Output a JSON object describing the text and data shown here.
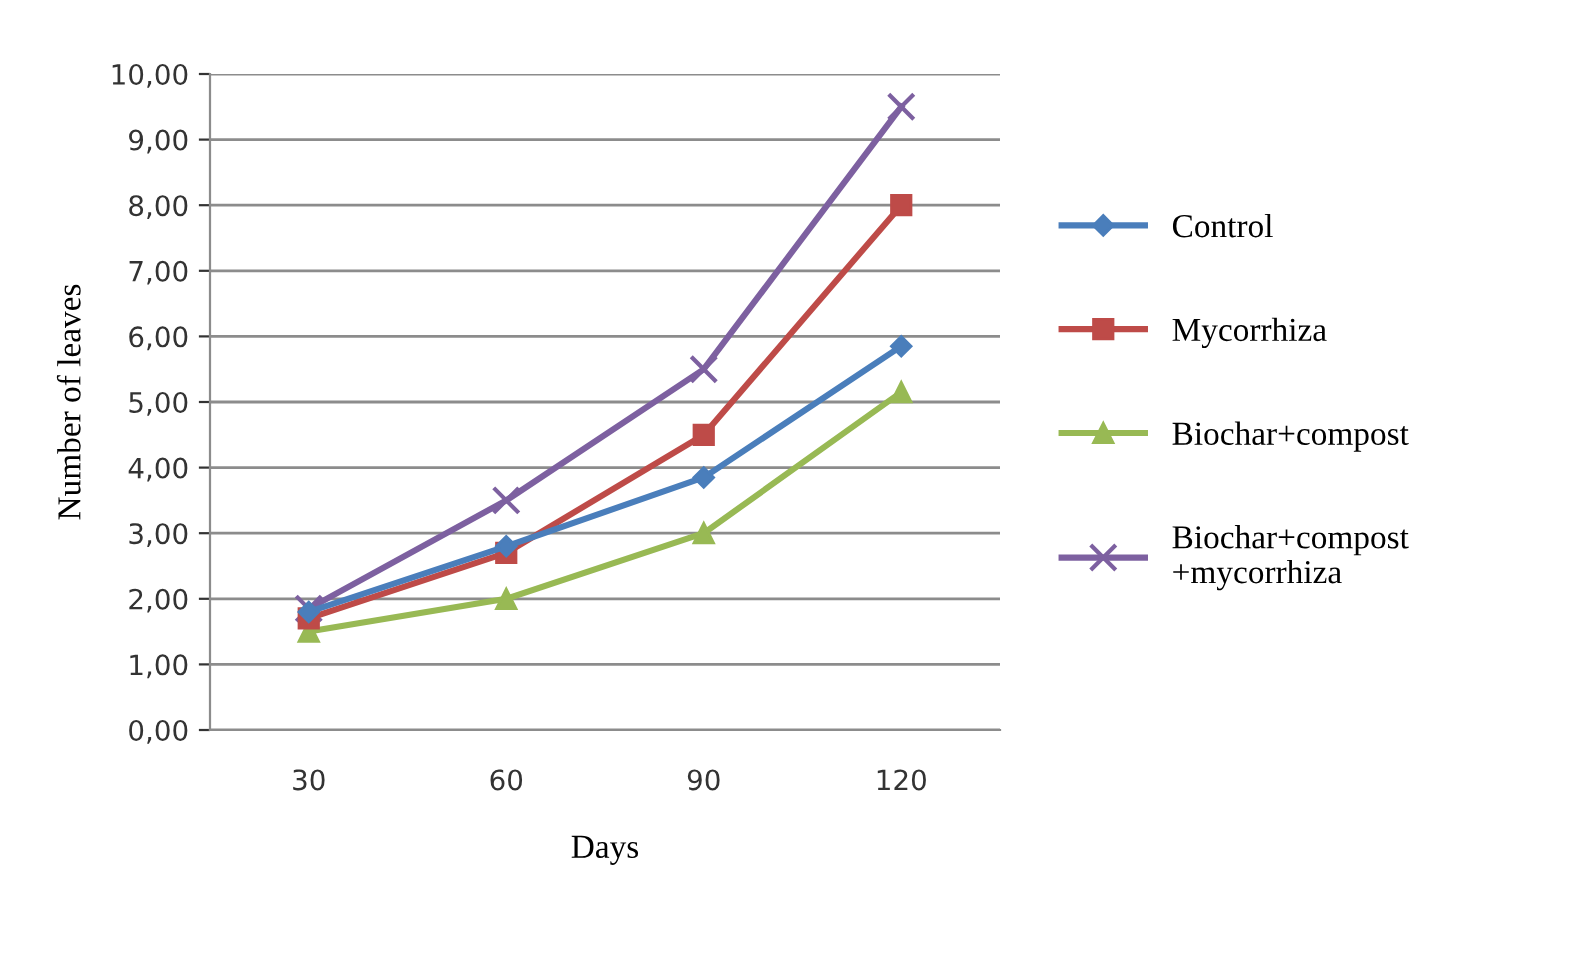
{
  "chart_data": {
    "type": "line",
    "xlabel": "Days",
    "ylabel": "Number of leaves",
    "categories": [
      "30",
      "60",
      "90",
      "120"
    ],
    "series": [
      {
        "name": "Control",
        "color": "#4a7ebb",
        "marker": "diamond",
        "values": [
          1.8,
          2.8,
          3.85,
          5.85
        ]
      },
      {
        "name": "Mycorrhiza",
        "color": "#be4b48",
        "marker": "square",
        "values": [
          1.7,
          2.7,
          4.5,
          8.0
        ]
      },
      {
        "name": "Biochar+compost",
        "color": "#98b954",
        "marker": "triangle",
        "values": [
          1.5,
          2.0,
          3.0,
          5.15
        ]
      },
      {
        "name": "Biochar+compost\n+mycorrhiza",
        "color": "#7d60a0",
        "marker": "cross",
        "values": [
          1.85,
          3.5,
          5.5,
          9.5
        ]
      }
    ],
    "ylim": [
      0,
      10
    ],
    "yticks": [
      {
        "value": 0,
        "label": "0,00"
      },
      {
        "value": 1,
        "label": "1,00"
      },
      {
        "value": 2,
        "label": "2,00"
      },
      {
        "value": 3,
        "label": "3,00"
      },
      {
        "value": 4,
        "label": "4,00"
      },
      {
        "value": 5,
        "label": "5,00"
      },
      {
        "value": 6,
        "label": "6,00"
      },
      {
        "value": 7,
        "label": "7,00"
      },
      {
        "value": 8,
        "label": "8,00"
      },
      {
        "value": 9,
        "label": "9,00"
      },
      {
        "value": 10,
        "label": "10,00"
      }
    ],
    "grid": "y",
    "legend": "right",
    "line_style": "solid"
  }
}
